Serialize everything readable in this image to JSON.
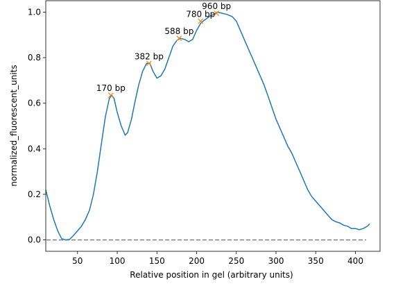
{
  "chart_data": {
    "type": "line",
    "xlabel": "Relative position in gel (arbitrary units)",
    "ylabel": "normalized_fluorescent_units",
    "xlim": [
      10,
      431
    ],
    "ylim": [
      -0.05,
      1.05
    ],
    "xticks": [
      50,
      100,
      150,
      200,
      250,
      300,
      350,
      400
    ],
    "yticks": [
      {
        "value": 0,
        "label": "0.0"
      },
      0.2,
      0.4,
      0.6,
      0.8,
      {
        "value": 1,
        "label": "1.0"
      }
    ],
    "baseline": 0,
    "baseline_color": "#808080",
    "series": [
      {
        "color": "#1f77b4",
        "x": [
          10,
          15,
          20,
          25,
          30,
          35,
          40,
          45,
          50,
          55,
          60,
          65,
          70,
          75,
          80,
          85,
          90,
          93,
          96,
          100,
          105,
          110,
          113,
          118,
          122,
          127,
          132,
          137,
          141,
          145,
          150,
          155,
          160,
          165,
          170,
          175,
          179,
          185,
          190,
          195,
          200,
          205,
          208,
          212,
          218,
          222,
          226,
          232,
          238,
          245,
          250,
          255,
          260,
          265,
          270,
          275,
          280,
          285,
          290,
          295,
          300,
          305,
          310,
          315,
          320,
          325,
          330,
          335,
          340,
          345,
          350,
          355,
          360,
          365,
          370,
          375,
          380,
          385,
          390,
          395,
          400,
          405,
          410,
          415,
          418
        ],
        "values": [
          0.22,
          0.15,
          0.09,
          0.04,
          0.005,
          0.0,
          0.002,
          0.02,
          0.04,
          0.06,
          0.09,
          0.13,
          0.2,
          0.3,
          0.42,
          0.54,
          0.62,
          0.635,
          0.62,
          0.56,
          0.5,
          0.46,
          0.47,
          0.53,
          0.6,
          0.68,
          0.74,
          0.775,
          0.775,
          0.74,
          0.71,
          0.72,
          0.75,
          0.8,
          0.85,
          0.875,
          0.885,
          0.88,
          0.87,
          0.88,
          0.92,
          0.95,
          0.96,
          0.97,
          0.985,
          0.99,
          1.0,
          0.995,
          0.99,
          0.98,
          0.96,
          0.92,
          0.88,
          0.84,
          0.8,
          0.76,
          0.72,
          0.68,
          0.63,
          0.58,
          0.53,
          0.49,
          0.45,
          0.41,
          0.38,
          0.34,
          0.3,
          0.26,
          0.22,
          0.19,
          0.17,
          0.15,
          0.13,
          0.11,
          0.09,
          0.08,
          0.075,
          0.065,
          0.06,
          0.05,
          0.05,
          0.045,
          0.05,
          0.06,
          0.07
        ]
      }
    ],
    "peaks": {
      "color": "#ff7f0e",
      "labels": [
        "170 bp",
        "382 bp",
        "588 bp",
        "780 bp",
        "960 bp"
      ],
      "x": [
        92,
        140,
        178,
        205,
        225
      ],
      "values": [
        0.635,
        0.775,
        0.885,
        0.96,
        0.995
      ]
    }
  }
}
